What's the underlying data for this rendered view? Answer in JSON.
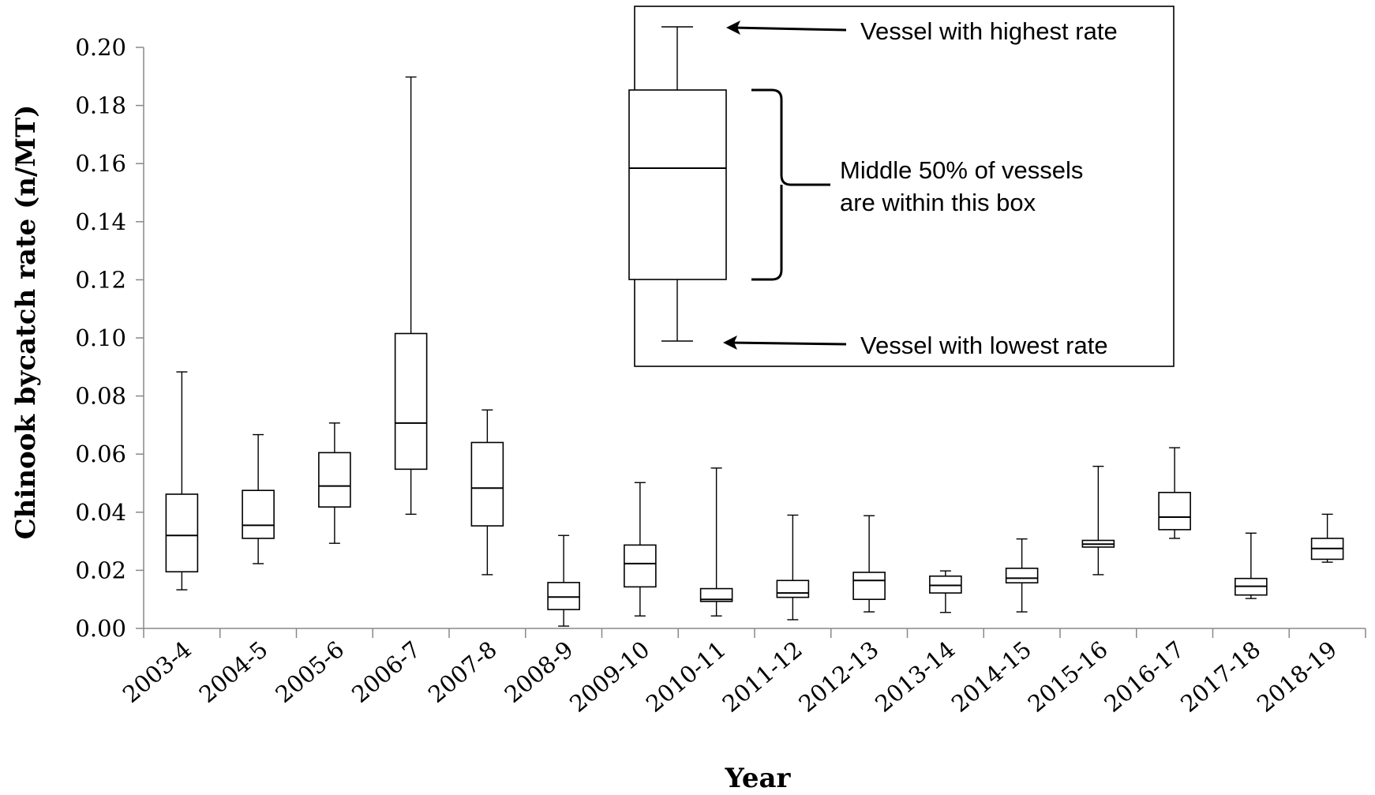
{
  "chart_data": {
    "type": "box",
    "title": "",
    "xlabel": "Year",
    "ylabel": "Chinook bycatch rate (n/MT)",
    "ylim": [
      0,
      0.2
    ],
    "yticks": [
      "0.00",
      "0.02",
      "0.04",
      "0.06",
      "0.08",
      "0.10",
      "0.12",
      "0.14",
      "0.16",
      "0.18",
      "0.20"
    ],
    "categories": [
      "2003-4",
      "2004-5",
      "2005-6",
      "2006-7",
      "2007-8",
      "2008-9",
      "2009-10",
      "2010-11",
      "2011-12",
      "2012-13",
      "2013-14",
      "2014-15",
      "2015-16",
      "2016-17",
      "2017-18",
      "2018-19"
    ],
    "boxes": [
      {
        "min": 0.0133,
        "q1": 0.0195,
        "median": 0.032,
        "q3": 0.0462,
        "max": 0.0883
      },
      {
        "min": 0.0223,
        "q1": 0.031,
        "median": 0.0355,
        "q3": 0.0475,
        "max": 0.0667
      },
      {
        "min": 0.0293,
        "q1": 0.0418,
        "median": 0.049,
        "q3": 0.0605,
        "max": 0.0707
      },
      {
        "min": 0.0393,
        "q1": 0.0548,
        "median": 0.0707,
        "q3": 0.1015,
        "max": 0.1898
      },
      {
        "min": 0.0185,
        "q1": 0.0353,
        "median": 0.0483,
        "q3": 0.064,
        "max": 0.0752
      },
      {
        "min": 0.0008,
        "q1": 0.0065,
        "median": 0.0108,
        "q3": 0.0158,
        "max": 0.032
      },
      {
        "min": 0.0043,
        "q1": 0.0143,
        "median": 0.0223,
        "q3": 0.0287,
        "max": 0.0502
      },
      {
        "min": 0.0043,
        "q1": 0.0093,
        "median": 0.01,
        "q3": 0.0137,
        "max": 0.0552
      },
      {
        "min": 0.003,
        "q1": 0.0107,
        "median": 0.0122,
        "q3": 0.0165,
        "max": 0.039
      },
      {
        "min": 0.0057,
        "q1": 0.01,
        "median": 0.0165,
        "q3": 0.0193,
        "max": 0.0388
      },
      {
        "min": 0.0055,
        "q1": 0.0122,
        "median": 0.0148,
        "q3": 0.018,
        "max": 0.0198
      },
      {
        "min": 0.0057,
        "q1": 0.0157,
        "median": 0.0173,
        "q3": 0.0207,
        "max": 0.0308
      },
      {
        "min": 0.0185,
        "q1": 0.028,
        "median": 0.029,
        "q3": 0.0303,
        "max": 0.0558
      },
      {
        "min": 0.031,
        "q1": 0.034,
        "median": 0.0383,
        "q3": 0.0468,
        "max": 0.0622
      },
      {
        "min": 0.0103,
        "q1": 0.0115,
        "median": 0.0145,
        "q3": 0.0172,
        "max": 0.0328
      },
      {
        "min": 0.0228,
        "q1": 0.0238,
        "median": 0.0275,
        "q3": 0.031,
        "max": 0.0393
      }
    ],
    "grid": false,
    "legend": {
      "placement": "top-right",
      "highest_label": "Vessel with highest rate",
      "middle_label_line1": "Middle 50% of vessels",
      "middle_label_line2": "are  within this box",
      "lowest_label": "Vessel with lowest rate"
    }
  }
}
